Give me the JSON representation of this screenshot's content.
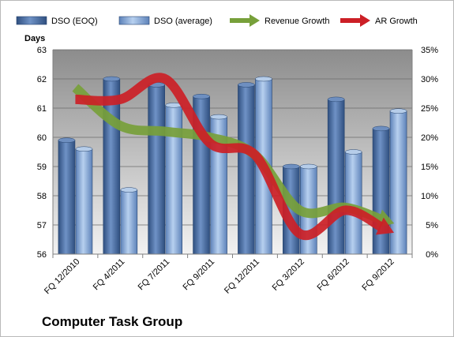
{
  "chart_data": {
    "type": "bar",
    "title": "Computer Task Group",
    "y_left_label": "Days",
    "y_left_range": [
      56,
      63
    ],
    "y_left_ticks": [
      "56",
      "57",
      "58",
      "59",
      "60",
      "61",
      "62",
      "63"
    ],
    "y_right_range": [
      0,
      35
    ],
    "y_right_ticks": [
      "0%",
      "5%",
      "10%",
      "15%",
      "20%",
      "25%",
      "30%",
      "35%"
    ],
    "categories": [
      "FQ 12/2010",
      "FQ 4/2011",
      "FQ 7/2011",
      "FQ 9/2011",
      "FQ 12/2011",
      "FQ 3/2012",
      "FQ 6/2012",
      "FQ 9/2012"
    ],
    "series": [
      {
        "name": "DSO (EOQ)",
        "kind": "bar",
        "axis": "left",
        "color": "#4a6fa5",
        "values": [
          59.9,
          62.0,
          61.8,
          61.4,
          61.8,
          59.0,
          61.3,
          60.3
        ]
      },
      {
        "name": "DSO (average)",
        "kind": "bar",
        "axis": "left",
        "color": "#8fb3df",
        "values": [
          59.6,
          58.2,
          61.1,
          60.7,
          62.0,
          59.0,
          59.5,
          60.9
        ]
      },
      {
        "name": "Revenue Growth",
        "kind": "line",
        "axis": "right",
        "color": "#77a03a",
        "values": [
          28.5,
          22.0,
          21.0,
          20.0,
          17.0,
          7.5,
          8.0,
          5.5
        ]
      },
      {
        "name": "AR Growth",
        "kind": "line",
        "axis": "right",
        "color": "#cc1f26",
        "values": [
          26.5,
          26.5,
          30.0,
          19.0,
          17.0,
          3.5,
          7.5,
          4.0
        ]
      }
    ],
    "legend_position": "top",
    "grid": true
  }
}
